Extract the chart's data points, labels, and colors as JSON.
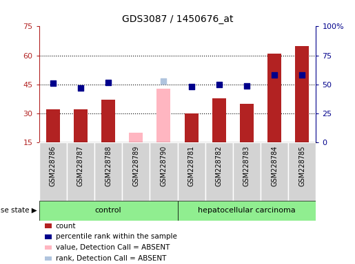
{
  "title": "GDS3087 / 1450676_at",
  "samples": [
    "GSM228786",
    "GSM228787",
    "GSM228788",
    "GSM228789",
    "GSM228790",
    "GSM228781",
    "GSM228782",
    "GSM228783",
    "GSM228784",
    "GSM228785"
  ],
  "groups": [
    "control",
    "control",
    "control",
    "control",
    "control",
    "hepatocellular carcinoma",
    "hepatocellular carcinoma",
    "hepatocellular carcinoma",
    "hepatocellular carcinoma",
    "hepatocellular carcinoma"
  ],
  "count_values": [
    32,
    32,
    37,
    null,
    null,
    30,
    38,
    35,
    61,
    65
  ],
  "count_absent_values": [
    null,
    null,
    null,
    20,
    43,
    null,
    null,
    null,
    null,
    null
  ],
  "rank_values": [
    51,
    47,
    52,
    null,
    null,
    48,
    50,
    49,
    58,
    58
  ],
  "rank_absent_values": [
    null,
    null,
    null,
    null,
    53,
    null,
    null,
    null,
    null,
    null
  ],
  "ylim_left": [
    15,
    75
  ],
  "ylim_right": [
    0,
    100
  ],
  "yticks_left": [
    15,
    30,
    45,
    60,
    75
  ],
  "yticks_right": [
    0,
    25,
    50,
    75,
    100
  ],
  "ytick_labels_left": [
    "15",
    "30",
    "45",
    "60",
    "75"
  ],
  "ytick_labels_right": [
    "0",
    "25",
    "50",
    "75",
    "100%"
  ],
  "grid_lines": [
    30,
    45,
    60
  ],
  "bar_color_present": "#b22222",
  "bar_color_absent": "#ffb6c1",
  "dot_color_present": "#00008b",
  "dot_color_absent": "#b0c4de",
  "control_color": "#90ee90",
  "carcinoma_color": "#90ee90",
  "label_bg_color": "#d3d3d3",
  "control_label": "control",
  "carcinoma_label": "hepatocellular carcinoma",
  "disease_state_label": "disease state",
  "legend_items": [
    {
      "label": "count",
      "color": "#b22222"
    },
    {
      "label": "percentile rank within the sample",
      "color": "#00008b"
    },
    {
      "label": "value, Detection Call = ABSENT",
      "color": "#ffb6c1"
    },
    {
      "label": "rank, Detection Call = ABSENT",
      "color": "#b0c4de"
    }
  ],
  "bar_width": 0.5,
  "dot_size": 40
}
